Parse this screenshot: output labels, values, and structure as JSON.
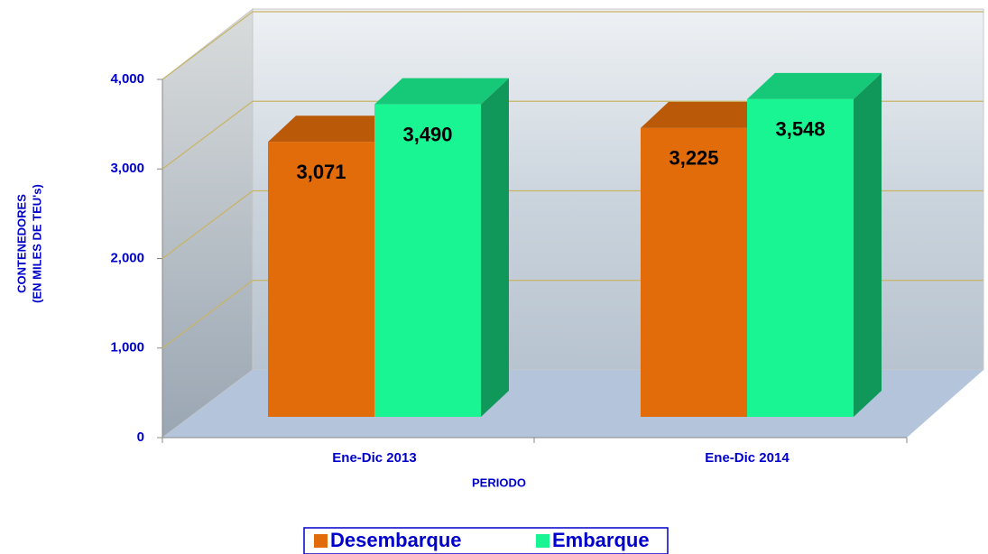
{
  "chart_data": {
    "type": "bar3d",
    "ylabel": [
      "CONTENEDORES",
      "(EN MILES DE TEU's)"
    ],
    "xlabel": "PERIODO",
    "categories": [
      "Ene-Dic 2013",
      "Ene-Dic 2014"
    ],
    "series": [
      {
        "name": "Desembarque",
        "color": "#e36c0a",
        "values": [
          3071,
          3225
        ],
        "value_labels": [
          "3,071",
          "3,225"
        ]
      },
      {
        "name": "Embarque",
        "color": "#1af593",
        "values": [
          3490,
          3548
        ],
        "value_labels": [
          "3,490",
          "3,548"
        ]
      }
    ],
    "ylim": [
      0,
      4000
    ],
    "yticks": [
      0,
      {
        "value": 1000,
        "label": "1,000"
      },
      {
        "value": 2000,
        "label": "2,000"
      },
      {
        "value": 3000,
        "label": "3,000"
      },
      {
        "value": 4000,
        "label": "4,000"
      }
    ],
    "grid": true,
    "legend": "bottom"
  }
}
